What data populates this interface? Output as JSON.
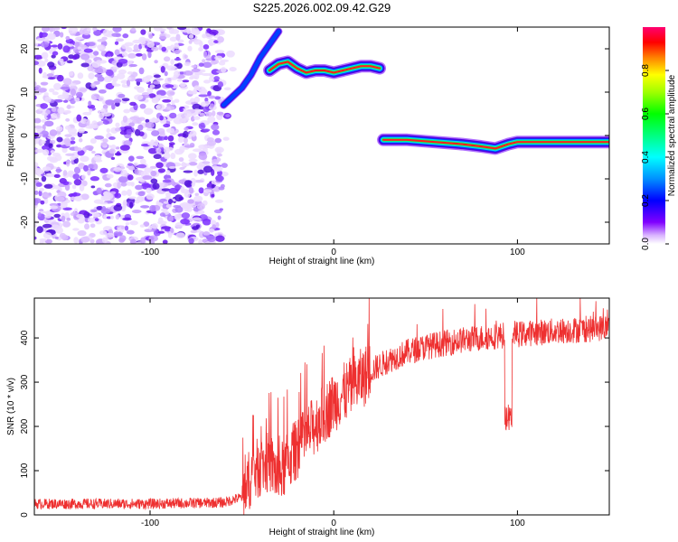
{
  "title": "S225.2026.002.09.42.G29",
  "chart_data": [
    {
      "type": "heatmap",
      "name": "spectrogram",
      "xlabel": "Height of straight line (km)",
      "ylabel": "Frequency (Hz)",
      "xlim": [
        -163,
        150
      ],
      "ylim": [
        -25,
        25
      ],
      "xticks": [
        -100,
        0,
        100
      ],
      "yticks": [
        -20,
        -10,
        0,
        10,
        20
      ],
      "colorbar": {
        "label": "Normalized spectral amplitude",
        "range": [
          0,
          1
        ],
        "ticks": [
          0.0,
          0.2,
          0.4,
          0.6,
          0.8
        ],
        "colors": [
          "#f0d8ff",
          "#c080ff",
          "#8000ff",
          "#0000ff",
          "#0080ff",
          "#00ffff",
          "#00ff80",
          "#00ff00",
          "#80ff00",
          "#ffff00",
          "#ff8000",
          "#ff0000",
          "#ff0060"
        ]
      },
      "noise_region_x": [
        -163,
        -60
      ],
      "tracks": [
        {
          "name": "track-upper",
          "points": [
            [
              -35,
              15
            ],
            [
              -30,
              16.5
            ],
            [
              -25,
              17
            ],
            [
              -20,
              15.5
            ],
            [
              -15,
              14.5
            ],
            [
              -10,
              15
            ],
            [
              -5,
              15
            ],
            [
              0,
              14.5
            ],
            [
              5,
              15
            ],
            [
              10,
              15.5
            ],
            [
              15,
              16
            ],
            [
              20,
              16
            ],
            [
              25,
              15.5
            ]
          ]
        },
        {
          "name": "track-lower",
          "points": [
            [
              27,
              -1
            ],
            [
              40,
              -1
            ],
            [
              55,
              -1.5
            ],
            [
              70,
              -2
            ],
            [
              80,
              -2.5
            ],
            [
              88,
              -3
            ],
            [
              95,
              -2
            ],
            [
              100,
              -1.5
            ],
            [
              115,
              -1.5
            ],
            [
              130,
              -1.5
            ],
            [
              150,
              -1.5
            ]
          ]
        },
        {
          "name": "track-rising",
          "points": [
            [
              -60,
              7
            ],
            [
              -55,
              9
            ],
            [
              -50,
              11
            ],
            [
              -45,
              14
            ],
            [
              -40,
              18
            ],
            [
              -35,
              21
            ],
            [
              -30,
              24
            ]
          ]
        }
      ]
    },
    {
      "type": "line",
      "name": "snr",
      "xlabel": "Height of straight line (km)",
      "ylabel": "SNR (10 * v/v)",
      "xlim": [
        -163,
        150
      ],
      "ylim": [
        0,
        490
      ],
      "xticks": [
        -100,
        0,
        100
      ],
      "yticks": [
        0,
        100,
        200,
        300,
        400
      ],
      "color": "#ee3030",
      "trend": [
        [
          -163,
          25
        ],
        [
          -100,
          25
        ],
        [
          -60,
          28
        ],
        [
          -50,
          40
        ],
        [
          -45,
          90
        ],
        [
          -40,
          110
        ],
        [
          -35,
          120
        ],
        [
          -30,
          85
        ],
        [
          -25,
          120
        ],
        [
          -20,
          150
        ],
        [
          -15,
          175
        ],
        [
          -10,
          205
        ],
        [
          -5,
          230
        ],
        [
          0,
          255
        ],
        [
          10,
          290
        ],
        [
          20,
          325
        ],
        [
          30,
          350
        ],
        [
          40,
          368
        ],
        [
          50,
          380
        ],
        [
          60,
          388
        ],
        [
          70,
          395
        ],
        [
          80,
          400
        ],
        [
          90,
          405
        ],
        [
          100,
          408
        ],
        [
          110,
          412
        ],
        [
          120,
          415
        ],
        [
          130,
          418
        ],
        [
          140,
          420
        ],
        [
          150,
          425
        ]
      ],
      "dip": {
        "x": [
          93,
          97
        ],
        "min": 190
      }
    }
  ]
}
